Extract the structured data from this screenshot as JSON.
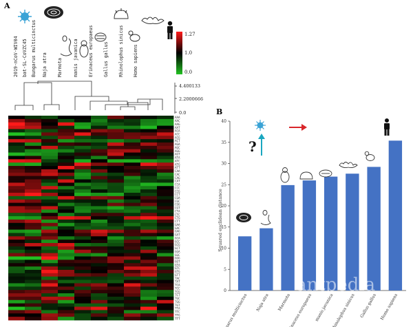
{
  "panel_a": {
    "label": "A",
    "species": [
      "2019-nCoV-WIV04",
      "bat-SL-CoVZC45",
      "Bungarus multicinctus",
      "Naja atra",
      "Marmota",
      "manis javanica",
      "Erinaceus europaeus",
      "Gallus gallus",
      "Rhinolophus sinicus",
      "Homo sapiens"
    ],
    "colorbar": {
      "max": "1.27",
      "mid": "1.0",
      "min": "0.0"
    },
    "dendro_scale": [
      "4.400133",
      "2.2000666",
      "0.0"
    ],
    "codons": [
      "AAA",
      "AAC",
      "AAG",
      "AAT",
      "ACA",
      "ACC",
      "ACG",
      "ACT",
      "AGA",
      "AGC",
      "AGG",
      "AGT",
      "ATA",
      "ATC",
      "ATG",
      "ATT",
      "CAA",
      "CAC",
      "CAG",
      "CAT",
      "CCA",
      "CCC",
      "CCG",
      "CCT",
      "CGA",
      "CGC",
      "CGG",
      "CGT",
      "CTA",
      "CTC",
      "CTG",
      "CTT",
      "GAA",
      "GAC",
      "GAG",
      "GAT",
      "GCA",
      "GCC",
      "GCG",
      "GCT",
      "GGA",
      "GGC",
      "GGG",
      "GGT",
      "GTA",
      "GTC",
      "GTG",
      "GTT",
      "TAC",
      "TAT",
      "TCA",
      "TCC",
      "TCG",
      "TCT",
      "TGC",
      "TGG",
      "TGT",
      "TTA",
      "TTC",
      "TTG",
      "TTT"
    ]
  },
  "panel_b": {
    "label": "B",
    "question_mark": "?",
    "watermark": "antpedia"
  },
  "colors": {
    "bar": "#4472c4",
    "heat_high": "#ff1a1a",
    "heat_mid": "#000000",
    "heat_low": "#22c222",
    "arrow_red": "#d9262a",
    "arrow_cyan": "#1aa7c0"
  },
  "chart_data": [
    {
      "type": "bar",
      "title": "",
      "categories": [
        "Bungarus multicinctus",
        "Naja atra",
        "Marmota",
        "Erinaceus europaeus",
        "manis javanica",
        "Rhinolophus sinicus",
        "Gallus gallus",
        "Homo sapiens"
      ],
      "values": [
        12.8,
        14.7,
        24.9,
        26.0,
        26.9,
        27.6,
        29.2,
        35.4
      ],
      "xlabel": "",
      "ylabel": "Squared euclidean distance",
      "ylim": [
        0,
        40
      ],
      "yticks": [
        0,
        5,
        10,
        15,
        20,
        25,
        30,
        35,
        40
      ]
    },
    {
      "type": "heatmap",
      "title": "",
      "columns": [
        "2019-nCoV-WIV04",
        "bat-SL-CoVZC45",
        "Bungarus multicinctus",
        "Naja atra",
        "Marmota",
        "manis javanica",
        "Erinaceus europaeus",
        "Gallus gallus",
        "Rhinolophus sinicus",
        "Homo sapiens"
      ],
      "color_range": [
        0.0,
        1.27
      ]
    }
  ]
}
